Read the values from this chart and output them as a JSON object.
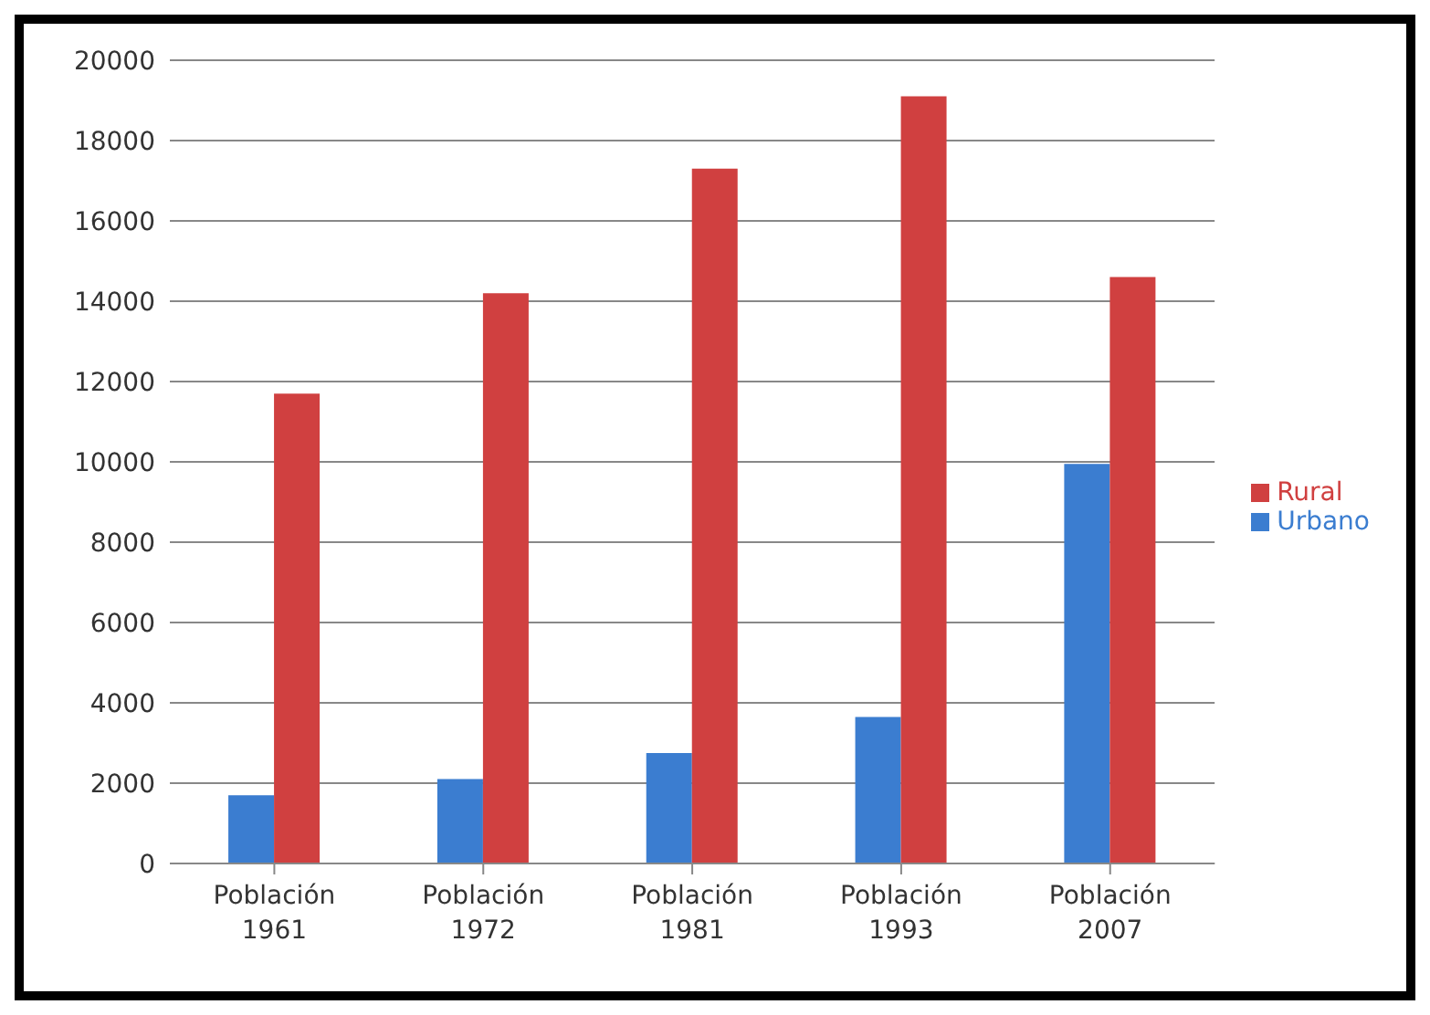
{
  "chart_data": {
    "type": "bar",
    "categories": [
      "Población\n1961",
      "Población\n1972",
      "Población\n1981",
      "Población\n1993",
      "Población\n2007"
    ],
    "series": [
      {
        "name": "Urbano",
        "color": "#3b7dd0",
        "values": [
          1700,
          2100,
          2750,
          3650,
          9950
        ]
      },
      {
        "name": "Rural",
        "color": "#d04040",
        "values": [
          11700,
          14200,
          17300,
          19100,
          14600
        ]
      }
    ],
    "ylim": [
      0,
      20000
    ],
    "yticks": [
      0,
      2000,
      4000,
      6000,
      8000,
      10000,
      12000,
      14000,
      16000,
      18000,
      20000
    ],
    "grid": "y",
    "legend": "right"
  }
}
